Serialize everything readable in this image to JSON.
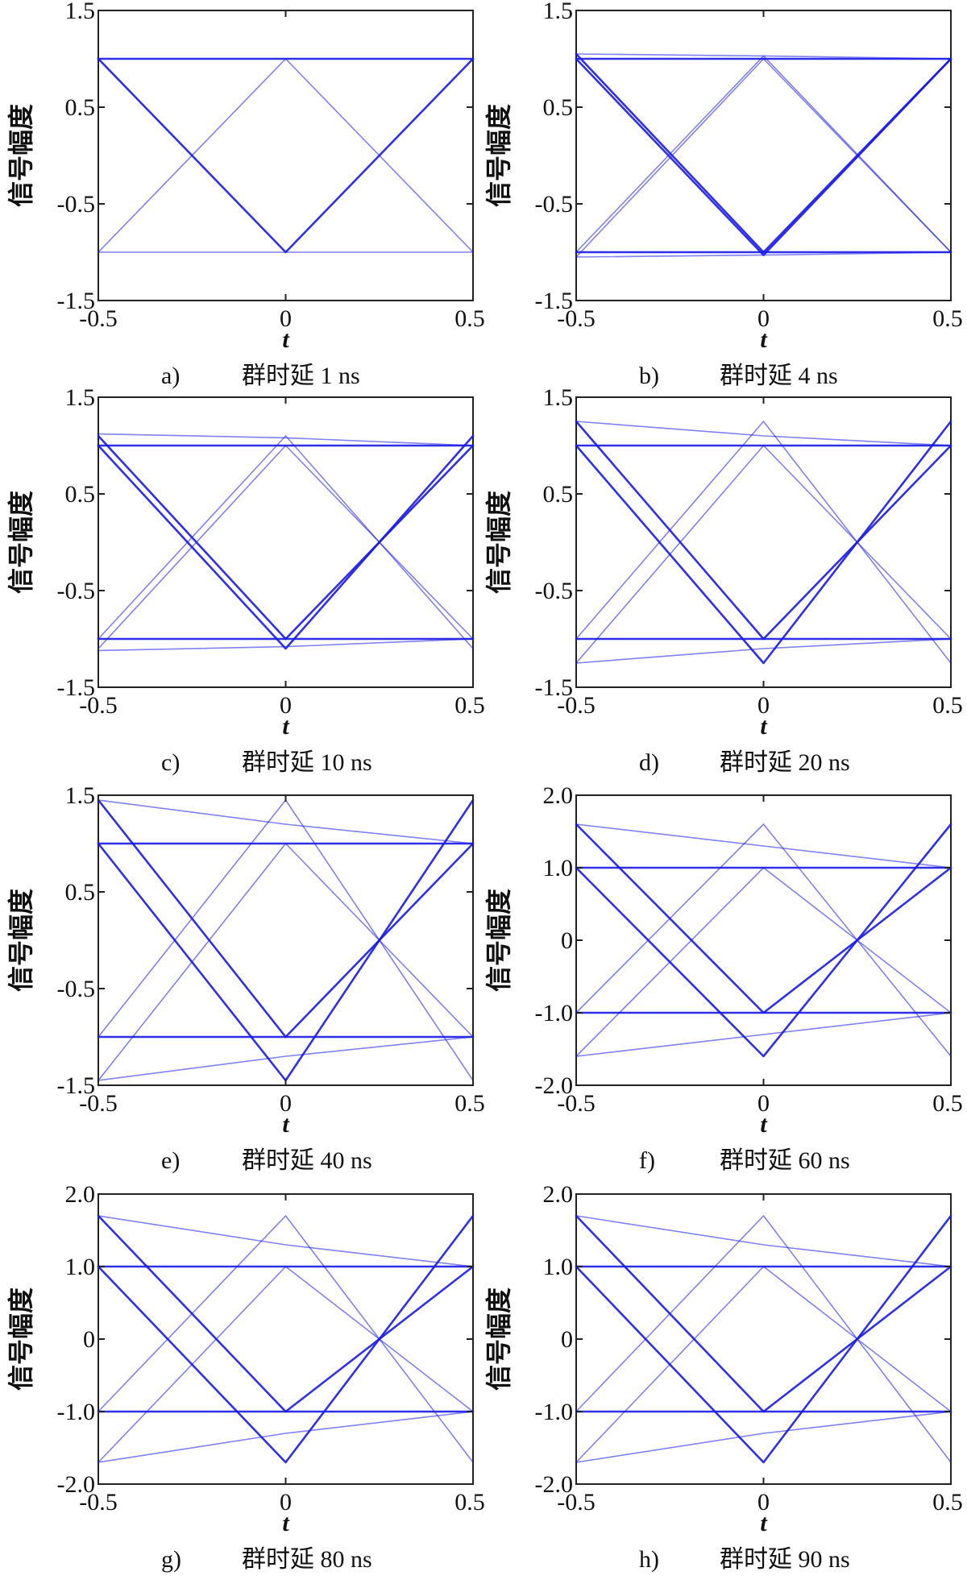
{
  "chart_data": [
    {
      "type": "line",
      "panel": "a)",
      "caption_label": "a)",
      "caption_text": "群时延 1 ns",
      "xlabel": "t",
      "ylabel": "信号幅度",
      "xlim": [
        -0.5,
        0.5
      ],
      "ylim": [
        -1.5,
        1.5
      ],
      "xticks": [
        "-0.5",
        "0",
        "0.5"
      ],
      "yticks": [
        "1.5",
        "0.5",
        "-0.5",
        "-1.5"
      ],
      "series": [
        {
          "x": [
            -0.5,
            0.5
          ],
          "y": [
            1.0,
            1.0
          ]
        },
        {
          "x": [
            -0.5,
            0.5
          ],
          "y": [
            -1.0,
            -1.0
          ]
        },
        {
          "x": [
            -0.5,
            0,
            0.5
          ],
          "y": [
            1.0,
            -1.0,
            1.0
          ]
        },
        {
          "x": [
            -0.5,
            0,
            0.5
          ],
          "y": [
            -1.0,
            1.0,
            -1.0
          ]
        }
      ]
    },
    {
      "type": "line",
      "panel": "b)",
      "caption_label": "b)",
      "caption_text": "群时延 4 ns",
      "xlabel": "t",
      "ylabel": "信号幅度",
      "xlim": [
        -0.5,
        0.5
      ],
      "ylim": [
        -1.5,
        1.5
      ],
      "xticks": [
        "-0.5",
        "0",
        "0.5"
      ],
      "yticks": [
        "1.5",
        "0.5",
        "-0.5",
        "-1.5"
      ],
      "series": [
        {
          "x": [
            -0.5,
            0.5
          ],
          "y": [
            1.0,
            1.0
          ]
        },
        {
          "x": [
            -0.5,
            0,
            0.5
          ],
          "y": [
            1.05,
            1.03,
            1.0
          ]
        },
        {
          "x": [
            -0.5,
            0.5
          ],
          "y": [
            -1.0,
            -1.0
          ]
        },
        {
          "x": [
            -0.5,
            0,
            0.5
          ],
          "y": [
            -1.05,
            -1.03,
            -1.0
          ]
        },
        {
          "x": [
            -0.5,
            0,
            0.5
          ],
          "y": [
            1.0,
            -1.03,
            1.0
          ]
        },
        {
          "x": [
            -0.5,
            0,
            0.5
          ],
          "y": [
            -1.0,
            1.03,
            -1.0
          ]
        },
        {
          "x": [
            -0.5,
            0,
            0.5
          ],
          "y": [
            1.05,
            -1.0,
            1.0
          ]
        },
        {
          "x": [
            -0.5,
            0,
            0.5
          ],
          "y": [
            -1.05,
            1.0,
            -1.0
          ]
        }
      ]
    },
    {
      "type": "line",
      "panel": "c)",
      "caption_label": "c)",
      "caption_text": "群时延 10 ns",
      "xlabel": "t",
      "ylabel": "信号幅度",
      "xlim": [
        -0.5,
        0.5
      ],
      "ylim": [
        -1.5,
        1.5
      ],
      "xticks": [
        "-0.5",
        "0",
        "0.5"
      ],
      "yticks": [
        "1.5",
        "0.5",
        "-0.5",
        "-1.5"
      ],
      "series": [
        {
          "x": [
            -0.5,
            0.5
          ],
          "y": [
            1.0,
            1.0
          ]
        },
        {
          "x": [
            -0.5,
            0,
            0.5
          ],
          "y": [
            1.12,
            1.08,
            1.0
          ]
        },
        {
          "x": [
            -0.5,
            0.5
          ],
          "y": [
            -1.0,
            -1.0
          ]
        },
        {
          "x": [
            -0.5,
            0,
            0.5
          ],
          "y": [
            -1.12,
            -1.08,
            -1.0
          ]
        },
        {
          "x": [
            -0.5,
            0,
            0.5
          ],
          "y": [
            1.0,
            -1.1,
            1.1
          ]
        },
        {
          "x": [
            -0.5,
            0,
            0.5
          ],
          "y": [
            -1.0,
            1.1,
            -1.1
          ]
        },
        {
          "x": [
            -0.5,
            0,
            0.5
          ],
          "y": [
            1.1,
            -1.0,
            1.0
          ]
        },
        {
          "x": [
            -0.5,
            0,
            0.5
          ],
          "y": [
            -1.1,
            1.0,
            -1.0
          ]
        }
      ]
    },
    {
      "type": "line",
      "panel": "d)",
      "caption_label": "d)",
      "caption_text": "群时延 20 ns",
      "xlabel": "t",
      "ylabel": "信号幅度",
      "xlim": [
        -0.5,
        0.5
      ],
      "ylim": [
        -1.5,
        1.5
      ],
      "xticks": [
        "-0.5",
        "0",
        "0.5"
      ],
      "yticks": [
        "1.5",
        "0.5",
        "-0.5",
        "-1.5"
      ],
      "series": [
        {
          "x": [
            -0.5,
            0.5
          ],
          "y": [
            1.0,
            1.0
          ]
        },
        {
          "x": [
            -0.5,
            0,
            0.5
          ],
          "y": [
            1.25,
            1.1,
            1.0
          ]
        },
        {
          "x": [
            -0.5,
            0.5
          ],
          "y": [
            -1.0,
            -1.0
          ]
        },
        {
          "x": [
            -0.5,
            0,
            0.5
          ],
          "y": [
            -1.25,
            -1.1,
            -1.0
          ]
        },
        {
          "x": [
            -0.5,
            0,
            0.5
          ],
          "y": [
            1.0,
            -1.25,
            1.25
          ]
        },
        {
          "x": [
            -0.5,
            0,
            0.5
          ],
          "y": [
            -1.0,
            1.25,
            -1.25
          ]
        },
        {
          "x": [
            -0.5,
            0,
            0.5
          ],
          "y": [
            1.25,
            -1.0,
            1.0
          ]
        },
        {
          "x": [
            -0.5,
            0,
            0.5
          ],
          "y": [
            -1.25,
            1.0,
            -1.0
          ]
        }
      ]
    },
    {
      "type": "line",
      "panel": "e)",
      "caption_label": "e)",
      "caption_text": "群时延 40 ns",
      "xlabel": "t",
      "ylabel": "信号幅度",
      "xlim": [
        -0.5,
        0.5
      ],
      "ylim": [
        -1.5,
        1.5
      ],
      "xticks": [
        "-0.5",
        "0",
        "0.5"
      ],
      "yticks": [
        "1.5",
        "0.5",
        "-0.5",
        "-1.5"
      ],
      "series": [
        {
          "x": [
            -0.5,
            0.5
          ],
          "y": [
            1.0,
            1.0
          ]
        },
        {
          "x": [
            -0.5,
            0,
            0.5
          ],
          "y": [
            1.45,
            1.2,
            1.0
          ]
        },
        {
          "x": [
            -0.5,
            0.5
          ],
          "y": [
            -1.0,
            -1.0
          ]
        },
        {
          "x": [
            -0.5,
            0,
            0.5
          ],
          "y": [
            -1.45,
            -1.2,
            -1.0
          ]
        },
        {
          "x": [
            -0.5,
            0,
            0.5
          ],
          "y": [
            1.0,
            -1.45,
            1.45
          ]
        },
        {
          "x": [
            -0.5,
            0,
            0.5
          ],
          "y": [
            -1.0,
            1.45,
            -1.45
          ]
        },
        {
          "x": [
            -0.5,
            0,
            0.5
          ],
          "y": [
            1.45,
            -1.0,
            1.0
          ]
        },
        {
          "x": [
            -0.5,
            0,
            0.5
          ],
          "y": [
            -1.45,
            1.0,
            -1.0
          ]
        }
      ]
    },
    {
      "type": "line",
      "panel": "f)",
      "caption_label": "f)",
      "caption_text": "群时延 60 ns",
      "xlabel": "t",
      "ylabel": "信号幅度",
      "xlim": [
        -0.5,
        0.5
      ],
      "ylim": [
        -2.0,
        2.0
      ],
      "xticks": [
        "-0.5",
        "0",
        "0.5"
      ],
      "yticks": [
        "2.0",
        "1.0",
        "0",
        "-1.0",
        "-2.0"
      ],
      "series": [
        {
          "x": [
            -0.5,
            0.5
          ],
          "y": [
            1.0,
            1.0
          ]
        },
        {
          "x": [
            -0.5,
            0,
            0.5
          ],
          "y": [
            1.6,
            1.3,
            1.0
          ]
        },
        {
          "x": [
            -0.5,
            0.5
          ],
          "y": [
            -1.0,
            -1.0
          ]
        },
        {
          "x": [
            -0.5,
            0,
            0.5
          ],
          "y": [
            -1.6,
            -1.3,
            -1.0
          ]
        },
        {
          "x": [
            -0.5,
            0,
            0.5
          ],
          "y": [
            1.0,
            -1.6,
            1.6
          ]
        },
        {
          "x": [
            -0.5,
            0,
            0.5
          ],
          "y": [
            -1.0,
            1.6,
            -1.6
          ]
        },
        {
          "x": [
            -0.5,
            0,
            0.5
          ],
          "y": [
            1.6,
            -1.0,
            1.0
          ]
        },
        {
          "x": [
            -0.5,
            0,
            0.5
          ],
          "y": [
            -1.6,
            1.0,
            -1.0
          ]
        }
      ]
    },
    {
      "type": "line",
      "panel": "g)",
      "caption_label": "g)",
      "caption_text": "群时延 80 ns",
      "xlabel": "t",
      "ylabel": "信号幅度",
      "xlim": [
        -0.5,
        0.5
      ],
      "ylim": [
        -2.0,
        2.0
      ],
      "xticks": [
        "-0.5",
        "0",
        "0.5"
      ],
      "yticks": [
        "2.0",
        "1.0",
        "0",
        "-1.0",
        "-2.0"
      ],
      "series": [
        {
          "x": [
            -0.5,
            0.5
          ],
          "y": [
            1.0,
            1.0
          ]
        },
        {
          "x": [
            -0.5,
            0,
            0.5
          ],
          "y": [
            1.7,
            1.3,
            1.0
          ]
        },
        {
          "x": [
            -0.5,
            0.5
          ],
          "y": [
            -1.0,
            -1.0
          ]
        },
        {
          "x": [
            -0.5,
            0,
            0.5
          ],
          "y": [
            -1.7,
            -1.3,
            -1.0
          ]
        },
        {
          "x": [
            -0.5,
            0,
            0.5
          ],
          "y": [
            1.0,
            -1.7,
            1.7
          ]
        },
        {
          "x": [
            -0.5,
            0,
            0.5
          ],
          "y": [
            -1.0,
            1.7,
            -1.7
          ]
        },
        {
          "x": [
            -0.5,
            0,
            0.5
          ],
          "y": [
            1.7,
            -1.0,
            1.0
          ]
        },
        {
          "x": [
            -0.5,
            0,
            0.5
          ],
          "y": [
            -1.7,
            1.0,
            -1.0
          ]
        }
      ]
    },
    {
      "type": "line",
      "panel": "h)",
      "caption_label": "h)",
      "caption_text": "群时延 90 ns",
      "xlabel": "t",
      "ylabel": "信号幅度",
      "xlim": [
        -0.5,
        0.5
      ],
      "ylim": [
        -2.0,
        2.0
      ],
      "xticks": [
        "-0.5",
        "0",
        "0.5"
      ],
      "yticks": [
        "2.0",
        "1.0",
        "0",
        "-1.0",
        "-2.0"
      ],
      "series": [
        {
          "x": [
            -0.5,
            0.5
          ],
          "y": [
            1.0,
            1.0
          ]
        },
        {
          "x": [
            -0.5,
            0,
            0.5
          ],
          "y": [
            1.7,
            1.3,
            1.0
          ]
        },
        {
          "x": [
            -0.5,
            0.5
          ],
          "y": [
            -1.0,
            -1.0
          ]
        },
        {
          "x": [
            -0.5,
            0,
            0.5
          ],
          "y": [
            -1.7,
            -1.3,
            -1.0
          ]
        },
        {
          "x": [
            -0.5,
            0,
            0.5
          ],
          "y": [
            1.0,
            -1.7,
            1.7
          ]
        },
        {
          "x": [
            -0.5,
            0,
            0.5
          ],
          "y": [
            -1.0,
            1.7,
            -1.7
          ]
        },
        {
          "x": [
            -0.5,
            0,
            0.5
          ],
          "y": [
            1.7,
            -1.0,
            1.0
          ]
        },
        {
          "x": [
            -0.5,
            0,
            0.5
          ],
          "y": [
            -1.7,
            1.0,
            -1.0
          ]
        }
      ]
    }
  ],
  "colors": {
    "trace": "#1a1ae6",
    "axis": "#222222"
  }
}
